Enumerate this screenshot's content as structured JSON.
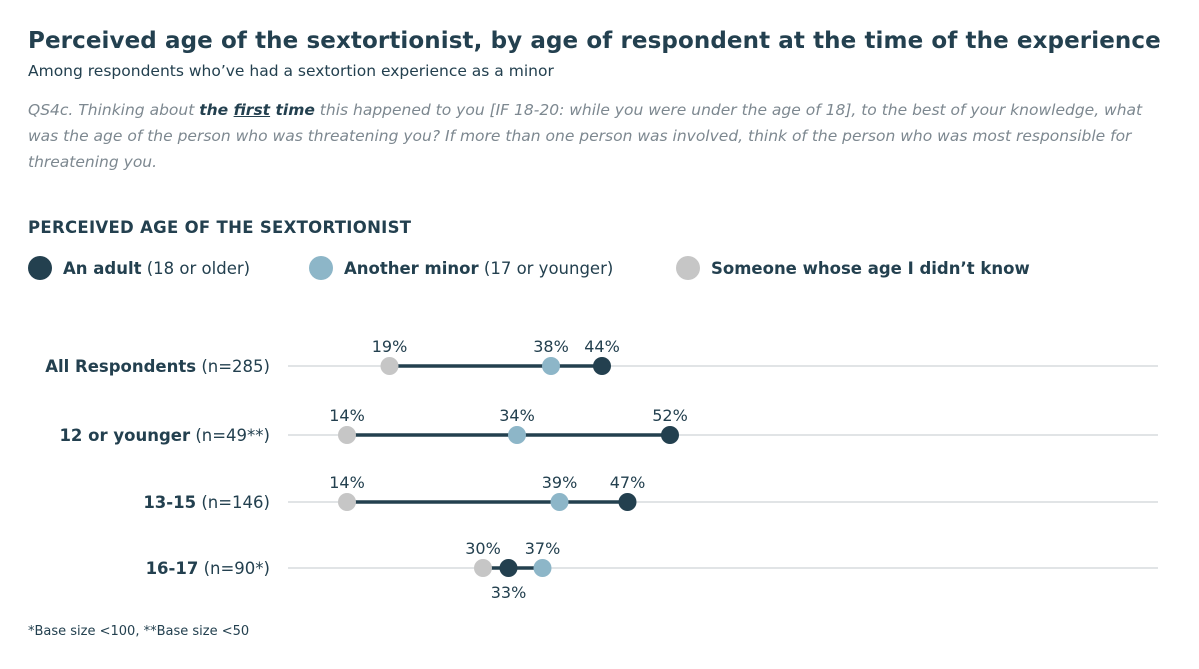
{
  "title": "Perceived age of the sextortionist, by age of respondent at the time of the experience",
  "subtitle": "Among respondents who’ve had a sextortion experience as a minor",
  "question": {
    "prefix": "QS4c. Thinking about ",
    "bold_1": "the ",
    "bold_underlined": "first",
    "bold_2": " time",
    "rest": " this happened to you [IF 18-20: while you were under the age of 18], to the best of your knowledge, what was the age of the person who was threatening you? If more than one person was involved, think of the person who was most responsible for threatening you."
  },
  "section_heading": "PERCEIVED AGE OF THE SEXTORTIONIST",
  "legend": [
    {
      "key": "adult",
      "bold": "An adult",
      "rest": " (18 or older)",
      "color": "#23404f"
    },
    {
      "key": "minor",
      "bold": "Another minor",
      "rest": " (17 or younger)",
      "color": "#8db6c8"
    },
    {
      "key": "unknown",
      "bold": "Someone whose age I didn’t know",
      "rest": "",
      "color": "#c6c6c6"
    }
  ],
  "chart_data": {
    "type": "dumbbell",
    "title": "Perceived age of the sextortionist, by age of respondent at the time of the experience",
    "unit": "%",
    "series_keys": [
      "unknown",
      "minor",
      "adult"
    ],
    "rows": [
      {
        "bold": "All Respondents",
        "rest": " (n=285)",
        "unknown": 19,
        "minor": 38,
        "adult": 44
      },
      {
        "bold": "12 or younger",
        "rest": " (n=49**)",
        "unknown": 14,
        "minor": 34,
        "adult": 52
      },
      {
        "bold": "13-15",
        "rest": " (n=146)",
        "unknown": 14,
        "minor": 39,
        "adult": 47
      },
      {
        "bold": "16-17",
        "rest": " (n=90*)",
        "unknown": 30,
        "minor": 37,
        "adult": 33
      }
    ],
    "colors": {
      "adult": "#23404f",
      "minor": "#8db6c8",
      "unknown": "#c6c6c6",
      "gridline": "#cfd3d6"
    }
  },
  "footnote": "*Base size <100, **Base size <50"
}
